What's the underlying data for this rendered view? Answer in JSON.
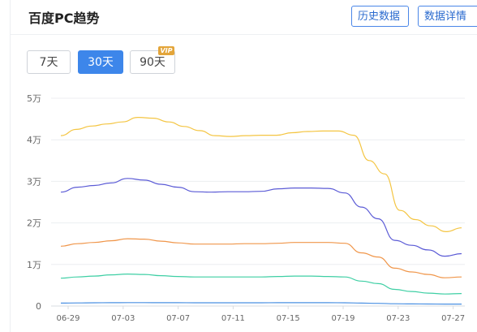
{
  "header": {
    "title": "百度PC趋势",
    "history_button": "历史数据",
    "detail_button": "数据详情"
  },
  "tabs": [
    {
      "label": "7天",
      "active": false
    },
    {
      "label": "30天",
      "active": true
    },
    {
      "label": "90天",
      "active": false,
      "badge": "VIP"
    }
  ],
  "colors": {
    "accent": "#3d86ea",
    "series": [
      "#f4c542",
      "#5b5bd6",
      "#f0964a",
      "#3ecfa4",
      "#4a90e2"
    ]
  },
  "chart_data": {
    "type": "line",
    "y_tick_labels": [
      "0",
      "1万",
      "2万",
      "3万",
      "4万",
      "5万"
    ],
    "ylim": [
      0,
      50000
    ],
    "x_tick_labels": [
      "06-29",
      "07-03",
      "07-07",
      "07-11",
      "07-15",
      "07-19",
      "07-23",
      "07-27"
    ],
    "x_days": 30,
    "grid": true,
    "series": [
      {
        "values": [
          41000,
          42500,
          43300,
          43800,
          44300,
          45400,
          45200,
          44300,
          43200,
          42200,
          41000,
          40800,
          41000,
          41100,
          41100,
          41700,
          42000,
          42100,
          42100,
          41100,
          35000,
          31800,
          23000,
          20800,
          19300,
          17900,
          18800
        ]
      },
      {
        "values": [
          27400,
          28600,
          29000,
          29600,
          30700,
          30300,
          29300,
          28600,
          27500,
          27400,
          27500,
          27500,
          27600,
          28200,
          28400,
          28400,
          28300,
          27200,
          23800,
          21000,
          15800,
          14600,
          13500,
          12000,
          12600
        ]
      },
      {
        "values": [
          14400,
          15000,
          15300,
          15700,
          16200,
          16100,
          15600,
          15200,
          14900,
          14900,
          14900,
          15000,
          15000,
          15100,
          15300,
          15300,
          15300,
          15100,
          12800,
          11800,
          9100,
          8200,
          7600,
          6800,
          7000
        ]
      },
      {
        "values": [
          6700,
          7000,
          7200,
          7500,
          7700,
          7600,
          7300,
          7100,
          7000,
          7000,
          7000,
          7000,
          7000,
          7100,
          7200,
          7200,
          7100,
          7000,
          6000,
          5400,
          4000,
          3500,
          3100,
          2900,
          3000
        ]
      },
      {
        "values": [
          700,
          750,
          780,
          800,
          820,
          820,
          810,
          800,
          790,
          790,
          790,
          790,
          790,
          800,
          800,
          800,
          800,
          790,
          700,
          650,
          550,
          500,
          480,
          460,
          470
        ]
      }
    ]
  }
}
